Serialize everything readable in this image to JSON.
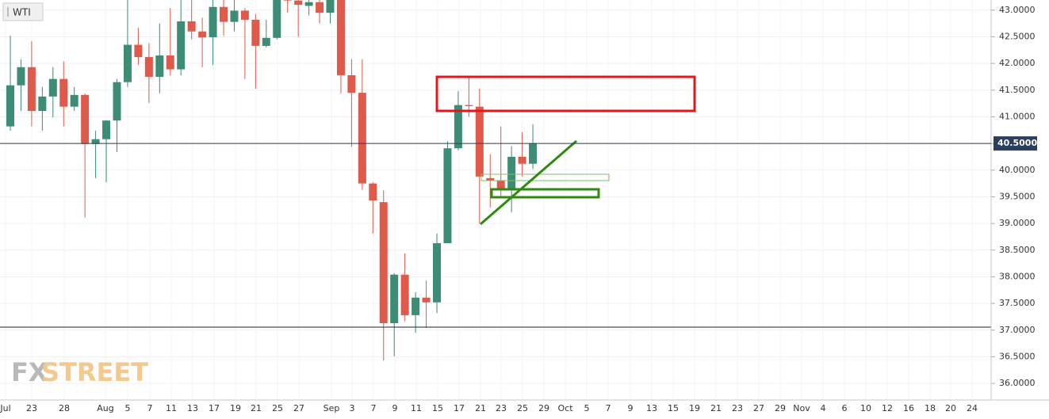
{
  "chart_data": {
    "type": "candlestick",
    "title": "WTI",
    "series": {
      "open": [
        40.82,
        41.59,
        41.93,
        41.11,
        41.38,
        41.71,
        41.19,
        41.41,
        40.49,
        40.58,
        40.93,
        41.65,
        42.35,
        42.12,
        41.75,
        42.15,
        41.89,
        42.79,
        42.6,
        42.49,
        43.06,
        42.78,
        42.99,
        42.82,
        42.33,
        42.48,
        43.3,
        43.18,
        43.08,
        43.15,
        42.95,
        43.2,
        41.78,
        41.45,
        39.75,
        39.4,
        37.13,
        38.04,
        37.28,
        37.61,
        37.52,
        38.63,
        40.41,
        41.22,
        41.19,
        39.85,
        39.8,
        39.63,
        40.25,
        40.12
      ],
      "high": [
        42.52,
        42.08,
        42.42,
        41.56,
        41.93,
        42.04,
        41.56,
        41.44,
        40.74,
        40.93,
        41.71,
        43.19,
        42.67,
        42.38,
        42.75,
        43.04,
        43.19,
        43.19,
        42.86,
        43.19,
        43.19,
        43.19,
        43.04,
        42.93,
        42.82,
        43.19,
        43.4,
        43.3,
        43.3,
        43.3,
        43.3,
        43.25,
        42.08,
        42.08,
        39.77,
        39.62,
        38.07,
        38.44,
        37.71,
        37.93,
        38.81,
        40.54,
        41.48,
        41.75,
        41.53,
        40.3,
        40.82,
        40.45,
        40.71,
        40.86
      ],
      "low": [
        40.74,
        41.11,
        40.82,
        40.74,
        40.99,
        40.82,
        41.11,
        39.11,
        39.85,
        39.77,
        40.34,
        41.56,
        41.97,
        41.26,
        41.44,
        41.78,
        41.78,
        42.45,
        41.93,
        41.97,
        42.52,
        42.6,
        41.71,
        41.53,
        42.3,
        42.45,
        42.95,
        42.5,
        42.9,
        42.75,
        42.75,
        41.44,
        40.44,
        39.63,
        38.81,
        36.43,
        36.51,
        37.17,
        36.95,
        37.04,
        37.32,
        38.63,
        40.37,
        41.0,
        39.0,
        39.3,
        39.51,
        39.21,
        39.88,
        40.02
      ],
      "close": [
        41.59,
        41.93,
        41.11,
        41.38,
        41.71,
        41.19,
        41.41,
        40.49,
        40.58,
        40.93,
        41.65,
        42.35,
        42.12,
        41.75,
        42.15,
        41.89,
        42.79,
        42.6,
        42.49,
        43.06,
        42.78,
        42.99,
        42.82,
        42.33,
        42.48,
        43.19,
        43.18,
        43.1,
        43.15,
        42.95,
        43.2,
        41.78,
        41.45,
        39.75,
        39.43,
        37.13,
        38.04,
        37.28,
        37.61,
        37.52,
        38.63,
        40.41,
        41.22,
        41.2,
        39.88,
        39.8,
        39.63,
        40.25,
        40.12,
        40.5
      ]
    },
    "up_color": "#3d8c76",
    "down_color": "#e05a4b",
    "ylim": [
      35.69,
      43.19
    ],
    "yticks": [
      {
        "value": 36,
        "label": "36.0000"
      },
      {
        "value": 36.5,
        "label": "36.5000"
      },
      {
        "value": 37,
        "label": "37.0000"
      },
      {
        "value": 37.5,
        "label": "37.5000"
      },
      {
        "value": 38,
        "label": "38.0000"
      },
      {
        "value": 38.5,
        "label": "38.5000"
      },
      {
        "value": 39,
        "label": "39.0000"
      },
      {
        "value": 39.5,
        "label": "39.5000"
      },
      {
        "value": 40,
        "label": "40.0000"
      },
      {
        "value": 40.5,
        "label": "40.5000"
      },
      {
        "value": 41,
        "label": "41.0000"
      },
      {
        "value": 41.5,
        "label": "41.5000"
      },
      {
        "value": 42,
        "label": "42.0000"
      },
      {
        "value": 42.5,
        "label": "42.5000"
      },
      {
        "value": 43,
        "label": "43.0000"
      }
    ],
    "xticks": [
      "Jul",
      "23",
      "28",
      "Aug",
      "5",
      "7",
      "11",
      "13",
      "17",
      "19",
      "21",
      "25",
      "27",
      "Sep",
      "3",
      "7",
      "9",
      "11",
      "15",
      "17",
      "21",
      "23",
      "25",
      "29",
      "Oct",
      "5",
      "7",
      "9",
      "13",
      "15",
      "19",
      "21",
      "23",
      "27",
      "29",
      "Nov",
      "4",
      "6",
      "10",
      "12",
      "16",
      "18",
      "20",
      "24"
    ],
    "last_price": {
      "value": 40.5,
      "label": "40.5000"
    },
    "grid": true
  },
  "watermark": {
    "left": "FX",
    "right": "STREET"
  }
}
